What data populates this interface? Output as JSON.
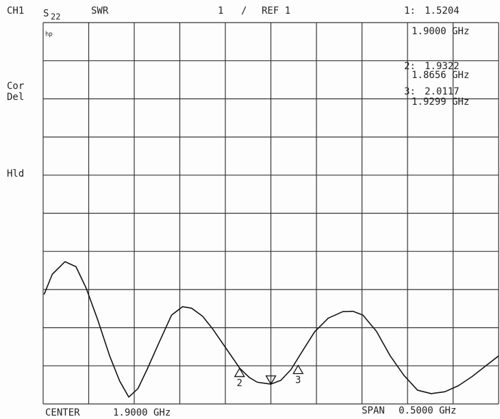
{
  "chart_data": {
    "type": "line",
    "channel": "CH1",
    "parameter": "S",
    "parameter_subscript": "22",
    "format": "SWR",
    "scale": "1",
    "scale_separator": "/",
    "reference": "REF 1",
    "logo": "hp",
    "annotations": [
      "Cor",
      "Del",
      "Hld"
    ],
    "center_label": "CENTER",
    "center": "1.9000 GHz",
    "span_label": "SPAN",
    "span": "0.5000 GHz",
    "color": "#111111",
    "grid": true,
    "xlim": [
      1.65,
      2.15
    ],
    "ylim": [
      1,
      11
    ],
    "xticks": [
      1.65,
      1.7,
      1.75,
      1.8,
      1.85,
      1.9,
      1.95,
      2.0,
      2.05,
      2.1,
      2.15
    ],
    "yticks": [
      1,
      2,
      3,
      4,
      5,
      6,
      7,
      8,
      9,
      10,
      11
    ],
    "x": [
      1.651,
      1.66,
      1.674,
      1.686,
      1.697,
      1.71,
      1.723,
      1.734,
      1.744,
      1.754,
      1.764,
      1.778,
      1.791,
      1.803,
      1.813,
      1.825,
      1.836,
      1.851,
      1.866,
      1.876,
      1.885,
      1.9,
      1.911,
      1.922,
      1.935,
      1.948,
      1.963,
      1.979,
      1.99,
      2.001,
      2.016,
      2.031,
      2.046,
      2.061,
      2.076,
      2.091,
      2.106,
      2.121,
      2.136,
      2.15
    ],
    "values": [
      3.87,
      4.4,
      4.73,
      4.6,
      4.05,
      3.2,
      2.26,
      1.6,
      1.18,
      1.4,
      1.9,
      2.65,
      3.33,
      3.55,
      3.51,
      3.3,
      2.97,
      2.45,
      1.93,
      1.7,
      1.57,
      1.52,
      1.62,
      1.9,
      2.4,
      2.89,
      3.25,
      3.42,
      3.43,
      3.33,
      2.9,
      2.26,
      1.75,
      1.36,
      1.27,
      1.32,
      1.48,
      1.72,
      2.0,
      2.26
    ],
    "markers": [
      {
        "readout": "1:",
        "value": 1.5204,
        "x": 1.9,
        "x_label": "1.9000 GHz"
      },
      {
        "readout": "2:",
        "tag": "2",
        "value": 1.9322,
        "x": 1.8656,
        "x_label": "1.8656 GHz"
      },
      {
        "readout": "3:",
        "tag": "3",
        "value": 2.0117,
        "x": 1.9299,
        "x_label": "1.9299 GHz"
      }
    ]
  }
}
